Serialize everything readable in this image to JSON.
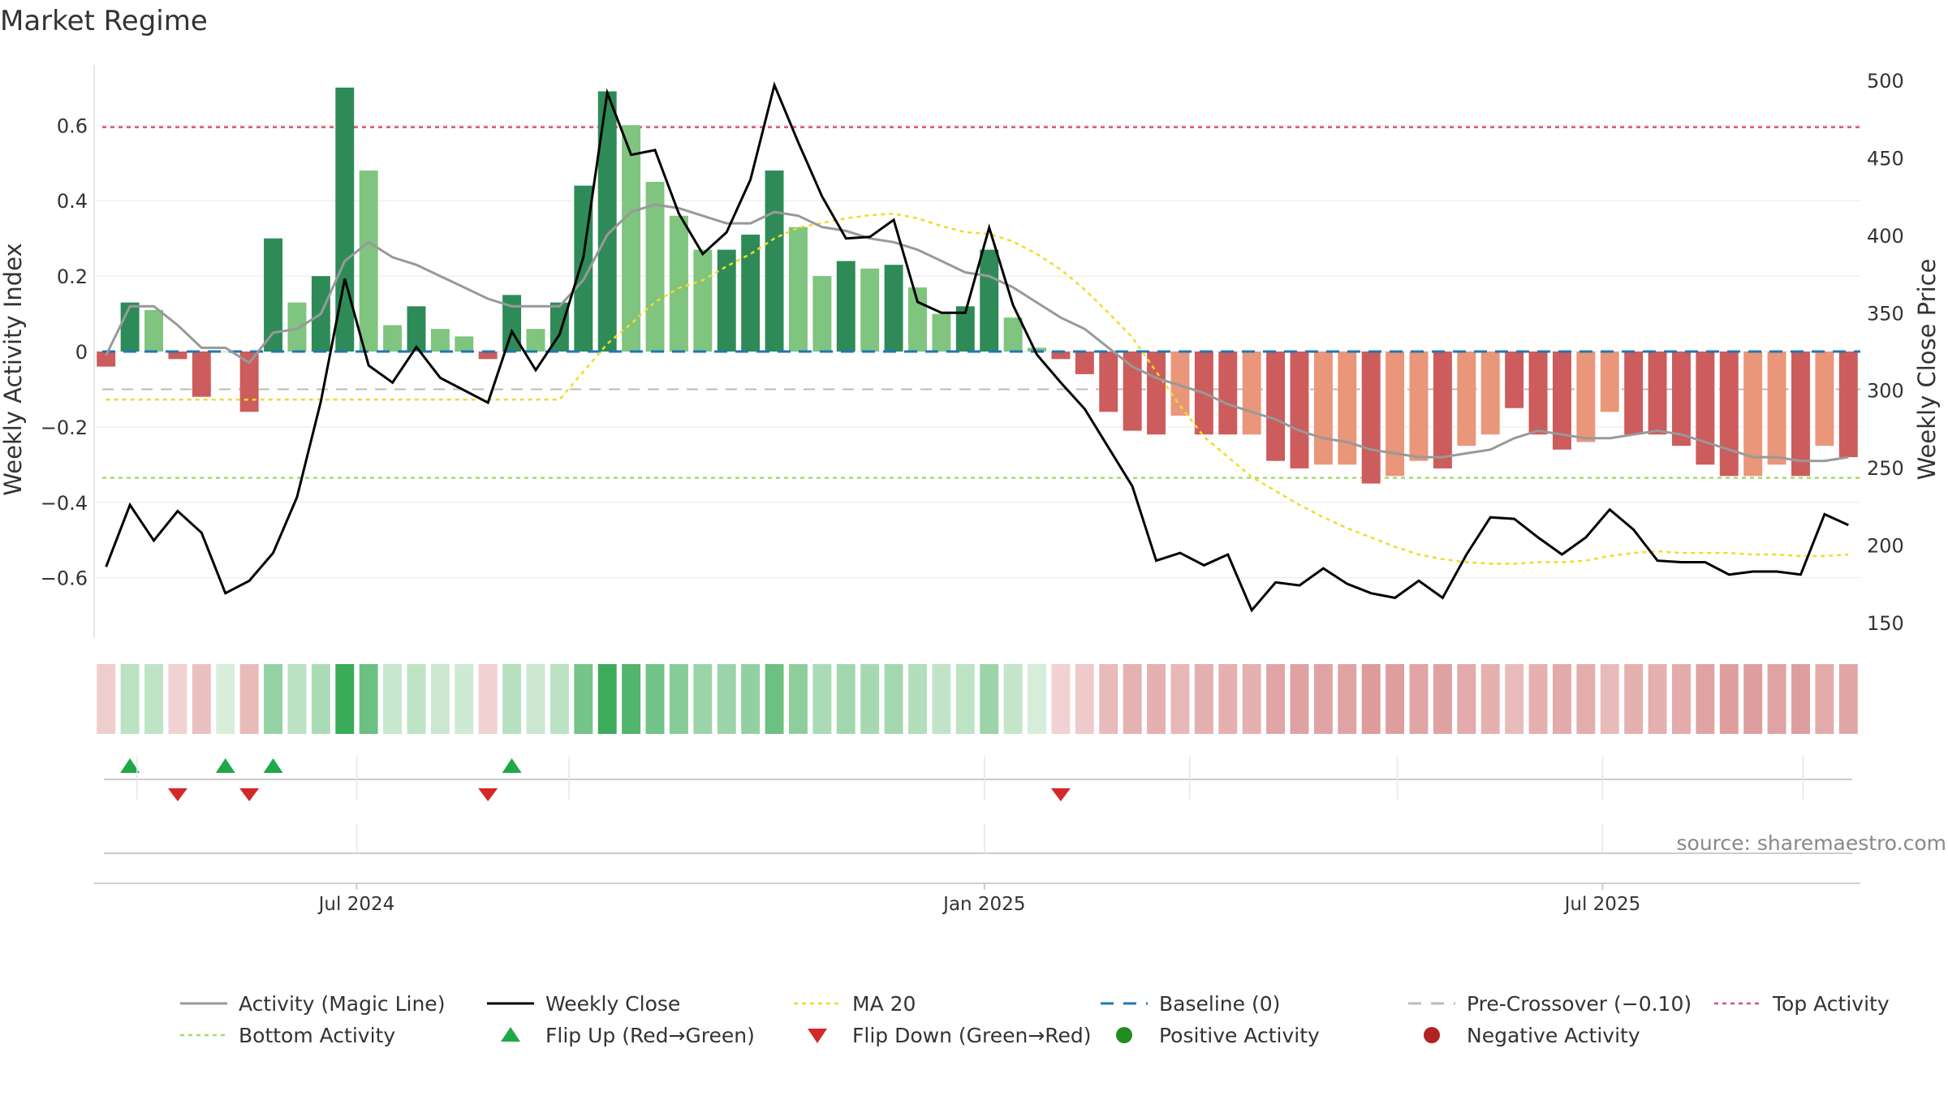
{
  "colors": {
    "bar_dark_green": "#2e8b57",
    "bar_light_green": "#7fc47f",
    "bar_dark_red": "#cd5c5c",
    "bar_light_red": "#e9967a",
    "activity_line": "#999999",
    "close_line": "#000000",
    "ma20_line": "#f0dc28",
    "baseline": "#1f77b4",
    "pre_crossover": "#bbbbbb",
    "top_activity": "#e0506a",
    "bottom_activity": "#a6d96a",
    "flip_up": "#1fa84a",
    "flip_down": "#d62728",
    "positive_dot": "#228b22",
    "negative_dot": "#b22222",
    "text": "#333333",
    "grid": "#e8e8e8"
  },
  "chart_data": {
    "type": "bar",
    "title": "Market Regime",
    "ylabel": "Weekly Activity Index",
    "y2label": "Weekly Close Price",
    "ylim": [
      -0.76,
      0.76
    ],
    "y2lim": [
      140,
      510
    ],
    "yticks": [
      0.6,
      0.4,
      0.2,
      0,
      -0.2,
      -0.4,
      -0.6
    ],
    "ytick_labels": [
      "0.6",
      "0.4",
      "0.2",
      "0",
      "−0.2",
      "−0.4",
      "−0.6"
    ],
    "y2ticks": [
      500,
      450,
      400,
      350,
      300,
      250,
      200,
      150
    ],
    "y2tick_labels": [
      "500",
      "450",
      "400",
      "350",
      "300",
      "250",
      "200",
      "150"
    ],
    "x_ticks": [
      {
        "index": 10.5,
        "label": "Jul 2024"
      },
      {
        "index": 36.8,
        "label": "Jan 2025"
      },
      {
        "index": 62.7,
        "label": "Jul 2025"
      }
    ],
    "lower_grid_index": [
      1.3,
      10.5,
      19.4,
      36.8,
      45.4,
      54.1,
      62.7,
      71.1
    ],
    "weeks": 74,
    "activity_index": [
      -0.04,
      0.13,
      0.11,
      -0.02,
      -0.12,
      0.0,
      -0.16,
      0.3,
      0.13,
      0.2,
      0.7,
      0.48,
      0.07,
      0.12,
      0.06,
      0.04,
      -0.02,
      0.15,
      0.06,
      0.13,
      0.44,
      0.69,
      0.6,
      0.45,
      0.36,
      0.27,
      0.27,
      0.31,
      0.48,
      0.33,
      0.2,
      0.24,
      0.22,
      0.23,
      0.17,
      0.1,
      0.12,
      0.27,
      0.09,
      0.01,
      -0.02,
      -0.06,
      -0.16,
      -0.21,
      -0.22,
      -0.17,
      -0.22,
      -0.22,
      -0.22,
      -0.29,
      -0.31,
      -0.3,
      -0.3,
      -0.35,
      -0.33,
      -0.29,
      -0.31,
      -0.25,
      -0.22,
      -0.15,
      -0.22,
      -0.26,
      -0.24,
      -0.16,
      -0.22,
      -0.22,
      -0.25,
      -0.3,
      -0.33,
      -0.33,
      -0.3,
      -0.33,
      -0.25,
      -0.28
    ],
    "bar_shade": [
      "dark",
      "dark",
      "light",
      "dark",
      "dark",
      "light",
      "dark",
      "dark",
      "light",
      "dark",
      "dark",
      "light",
      "light",
      "dark",
      "light",
      "light",
      "dark",
      "dark",
      "light",
      "dark",
      "dark",
      "dark",
      "light",
      "light",
      "light",
      "light",
      "dark",
      "dark",
      "dark",
      "light",
      "light",
      "dark",
      "light",
      "dark",
      "light",
      "light",
      "dark",
      "dark",
      "light",
      "light",
      "dark",
      "dark",
      "dark",
      "dark",
      "dark",
      "light",
      "dark",
      "dark",
      "light",
      "dark",
      "dark",
      "light",
      "light",
      "dark",
      "light",
      "light",
      "dark",
      "light",
      "light",
      "dark",
      "dark",
      "dark",
      "light",
      "light",
      "dark",
      "dark",
      "dark",
      "dark",
      "dark",
      "light",
      "light",
      "dark",
      "light",
      "dark"
    ],
    "activity_magic_line": [
      -0.01,
      0.12,
      0.12,
      0.07,
      0.01,
      0.01,
      -0.03,
      0.05,
      0.06,
      0.1,
      0.24,
      0.29,
      0.25,
      0.23,
      0.2,
      0.17,
      0.14,
      0.12,
      0.12,
      0.12,
      0.19,
      0.31,
      0.37,
      0.39,
      0.38,
      0.36,
      0.34,
      0.34,
      0.37,
      0.36,
      0.33,
      0.32,
      0.3,
      0.29,
      0.27,
      0.24,
      0.21,
      0.2,
      0.17,
      0.13,
      0.09,
      0.06,
      0.01,
      -0.04,
      -0.07,
      -0.09,
      -0.11,
      -0.14,
      -0.16,
      -0.18,
      -0.21,
      -0.23,
      -0.24,
      -0.26,
      -0.27,
      -0.28,
      -0.28,
      -0.27,
      -0.26,
      -0.23,
      -0.21,
      -0.22,
      -0.23,
      -0.23,
      -0.22,
      -0.21,
      -0.22,
      -0.24,
      -0.26,
      -0.28,
      -0.28,
      -0.29,
      -0.29,
      -0.28
    ],
    "weekly_close": [
      186,
      226,
      203,
      222,
      208,
      169,
      177,
      195,
      231,
      293,
      372,
      316,
      305,
      328,
      308,
      300,
      292,
      338,
      313,
      336,
      386,
      492,
      452,
      455,
      414,
      388,
      402,
      436,
      497,
      460,
      425,
      398,
      399,
      410,
      357,
      350,
      350,
      405,
      355,
      323,
      305,
      288,
      263,
      238,
      190,
      195,
      187,
      194,
      158,
      176,
      174,
      185,
      175,
      169,
      166,
      177,
      166,
      194,
      218,
      217,
      205,
      194,
      205,
      223,
      210,
      190,
      189,
      189,
      181,
      183,
      183,
      181,
      220,
      213
    ],
    "ma20": [
      294,
      294,
      294,
      294,
      294,
      294,
      294,
      294,
      294,
      294,
      294,
      294,
      294,
      294,
      294,
      294,
      294,
      294,
      294,
      294,
      312,
      330,
      343,
      357,
      366,
      371,
      380,
      388,
      398,
      405,
      408,
      411,
      413,
      414,
      411,
      406,
      402,
      401,
      396,
      388,
      378,
      365,
      350,
      334,
      312,
      290,
      270,
      257,
      244,
      235,
      226,
      218,
      211,
      205,
      199,
      194,
      191,
      189,
      188,
      188,
      189,
      189,
      190,
      193,
      195,
      196,
      195,
      195,
      195,
      194,
      194,
      193,
      193,
      194
    ],
    "baseline_value": 0,
    "pre_crossover_value": -0.1,
    "top_activity_value": 0.595,
    "bottom_activity_value": -0.335,
    "flip_up_weeks": [
      1,
      5,
      7,
      17
    ],
    "flip_down_weeks": [
      3,
      6,
      16,
      40
    ],
    "heat_strip_values": [
      -0.04,
      0.13,
      0.11,
      -0.02,
      -0.12,
      0.0,
      -0.16,
      0.3,
      0.13,
      0.2,
      0.7,
      0.48,
      0.07,
      0.12,
      0.06,
      0.04,
      -0.02,
      0.15,
      0.06,
      0.13,
      0.44,
      0.69,
      0.6,
      0.45,
      0.36,
      0.27,
      0.27,
      0.31,
      0.48,
      0.33,
      0.2,
      0.24,
      0.22,
      0.23,
      0.17,
      0.1,
      0.12,
      0.27,
      0.09,
      0.01,
      -0.02,
      -0.06,
      -0.16,
      -0.21,
      -0.22,
      -0.17,
      -0.22,
      -0.22,
      -0.22,
      -0.29,
      -0.31,
      -0.3,
      -0.3,
      -0.35,
      -0.33,
      -0.29,
      -0.31,
      -0.25,
      -0.22,
      -0.15,
      -0.22,
      -0.26,
      -0.24,
      -0.16,
      -0.22,
      -0.22,
      -0.25,
      -0.3,
      -0.33,
      -0.33,
      -0.3,
      -0.33,
      -0.25,
      -0.28
    ],
    "source_label": "source: sharemaestro.com",
    "legend": [
      {
        "label": "Activity (Magic Line)",
        "kind": "solid-line",
        "color_key": "activity_line"
      },
      {
        "label": "Weekly Close",
        "kind": "solid-line",
        "color_key": "close_line"
      },
      {
        "label": "MA 20",
        "kind": "dotted-line",
        "color_key": "ma20_line"
      },
      {
        "label": "Baseline (0)",
        "kind": "dashed-line",
        "color_key": "baseline"
      },
      {
        "label": "Pre-Crossover (−0.10)",
        "kind": "dashed-line",
        "color_key": "pre_crossover"
      },
      {
        "label": "Top Activity",
        "kind": "dotted-line",
        "color_key": "top_activity"
      },
      {
        "label": "Bottom Activity",
        "kind": "dotted-line",
        "color_key": "bottom_activity"
      },
      {
        "label": "Flip Up (Red→Green)",
        "kind": "triangle-up",
        "color_key": "flip_up"
      },
      {
        "label": "Flip Down (Green→Red)",
        "kind": "triangle-down",
        "color_key": "flip_down"
      },
      {
        "label": "Positive Activity",
        "kind": "dot",
        "color_key": "positive_dot"
      },
      {
        "label": "Negative Activity",
        "kind": "dot",
        "color_key": "negative_dot"
      }
    ]
  }
}
